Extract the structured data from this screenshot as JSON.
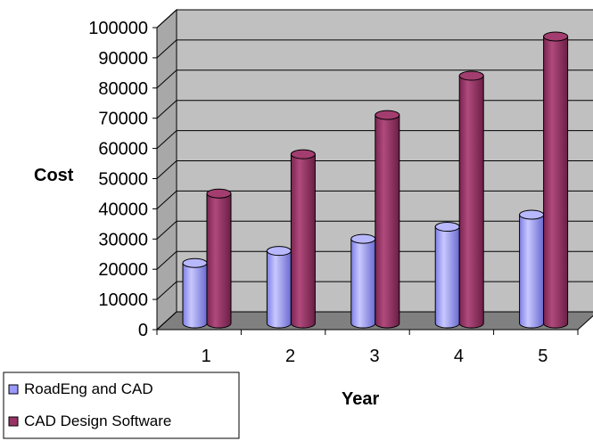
{
  "chart_data": {
    "type": "bar",
    "categories": [
      "1",
      "2",
      "3",
      "4",
      "5"
    ],
    "series": [
      {
        "name": "RoadEng and CAD",
        "values": [
          20000,
          24000,
          28000,
          32000,
          36000
        ],
        "color": "#9999ff"
      },
      {
        "name": "CAD Design Software",
        "values": [
          43000,
          56000,
          69000,
          82000,
          95000
        ],
        "color": "#993366"
      }
    ],
    "ylim": [
      0,
      100000
    ],
    "yticks": [
      0,
      10000,
      20000,
      30000,
      40000,
      50000,
      60000,
      70000,
      80000,
      90000,
      100000
    ],
    "xlabel": "Year",
    "ylabel": "Cost",
    "grid": true,
    "legend_position": "bottom-left",
    "style": "3d-cylinder",
    "wall_color": "#c0c0c0",
    "floor_color": "#808080"
  }
}
